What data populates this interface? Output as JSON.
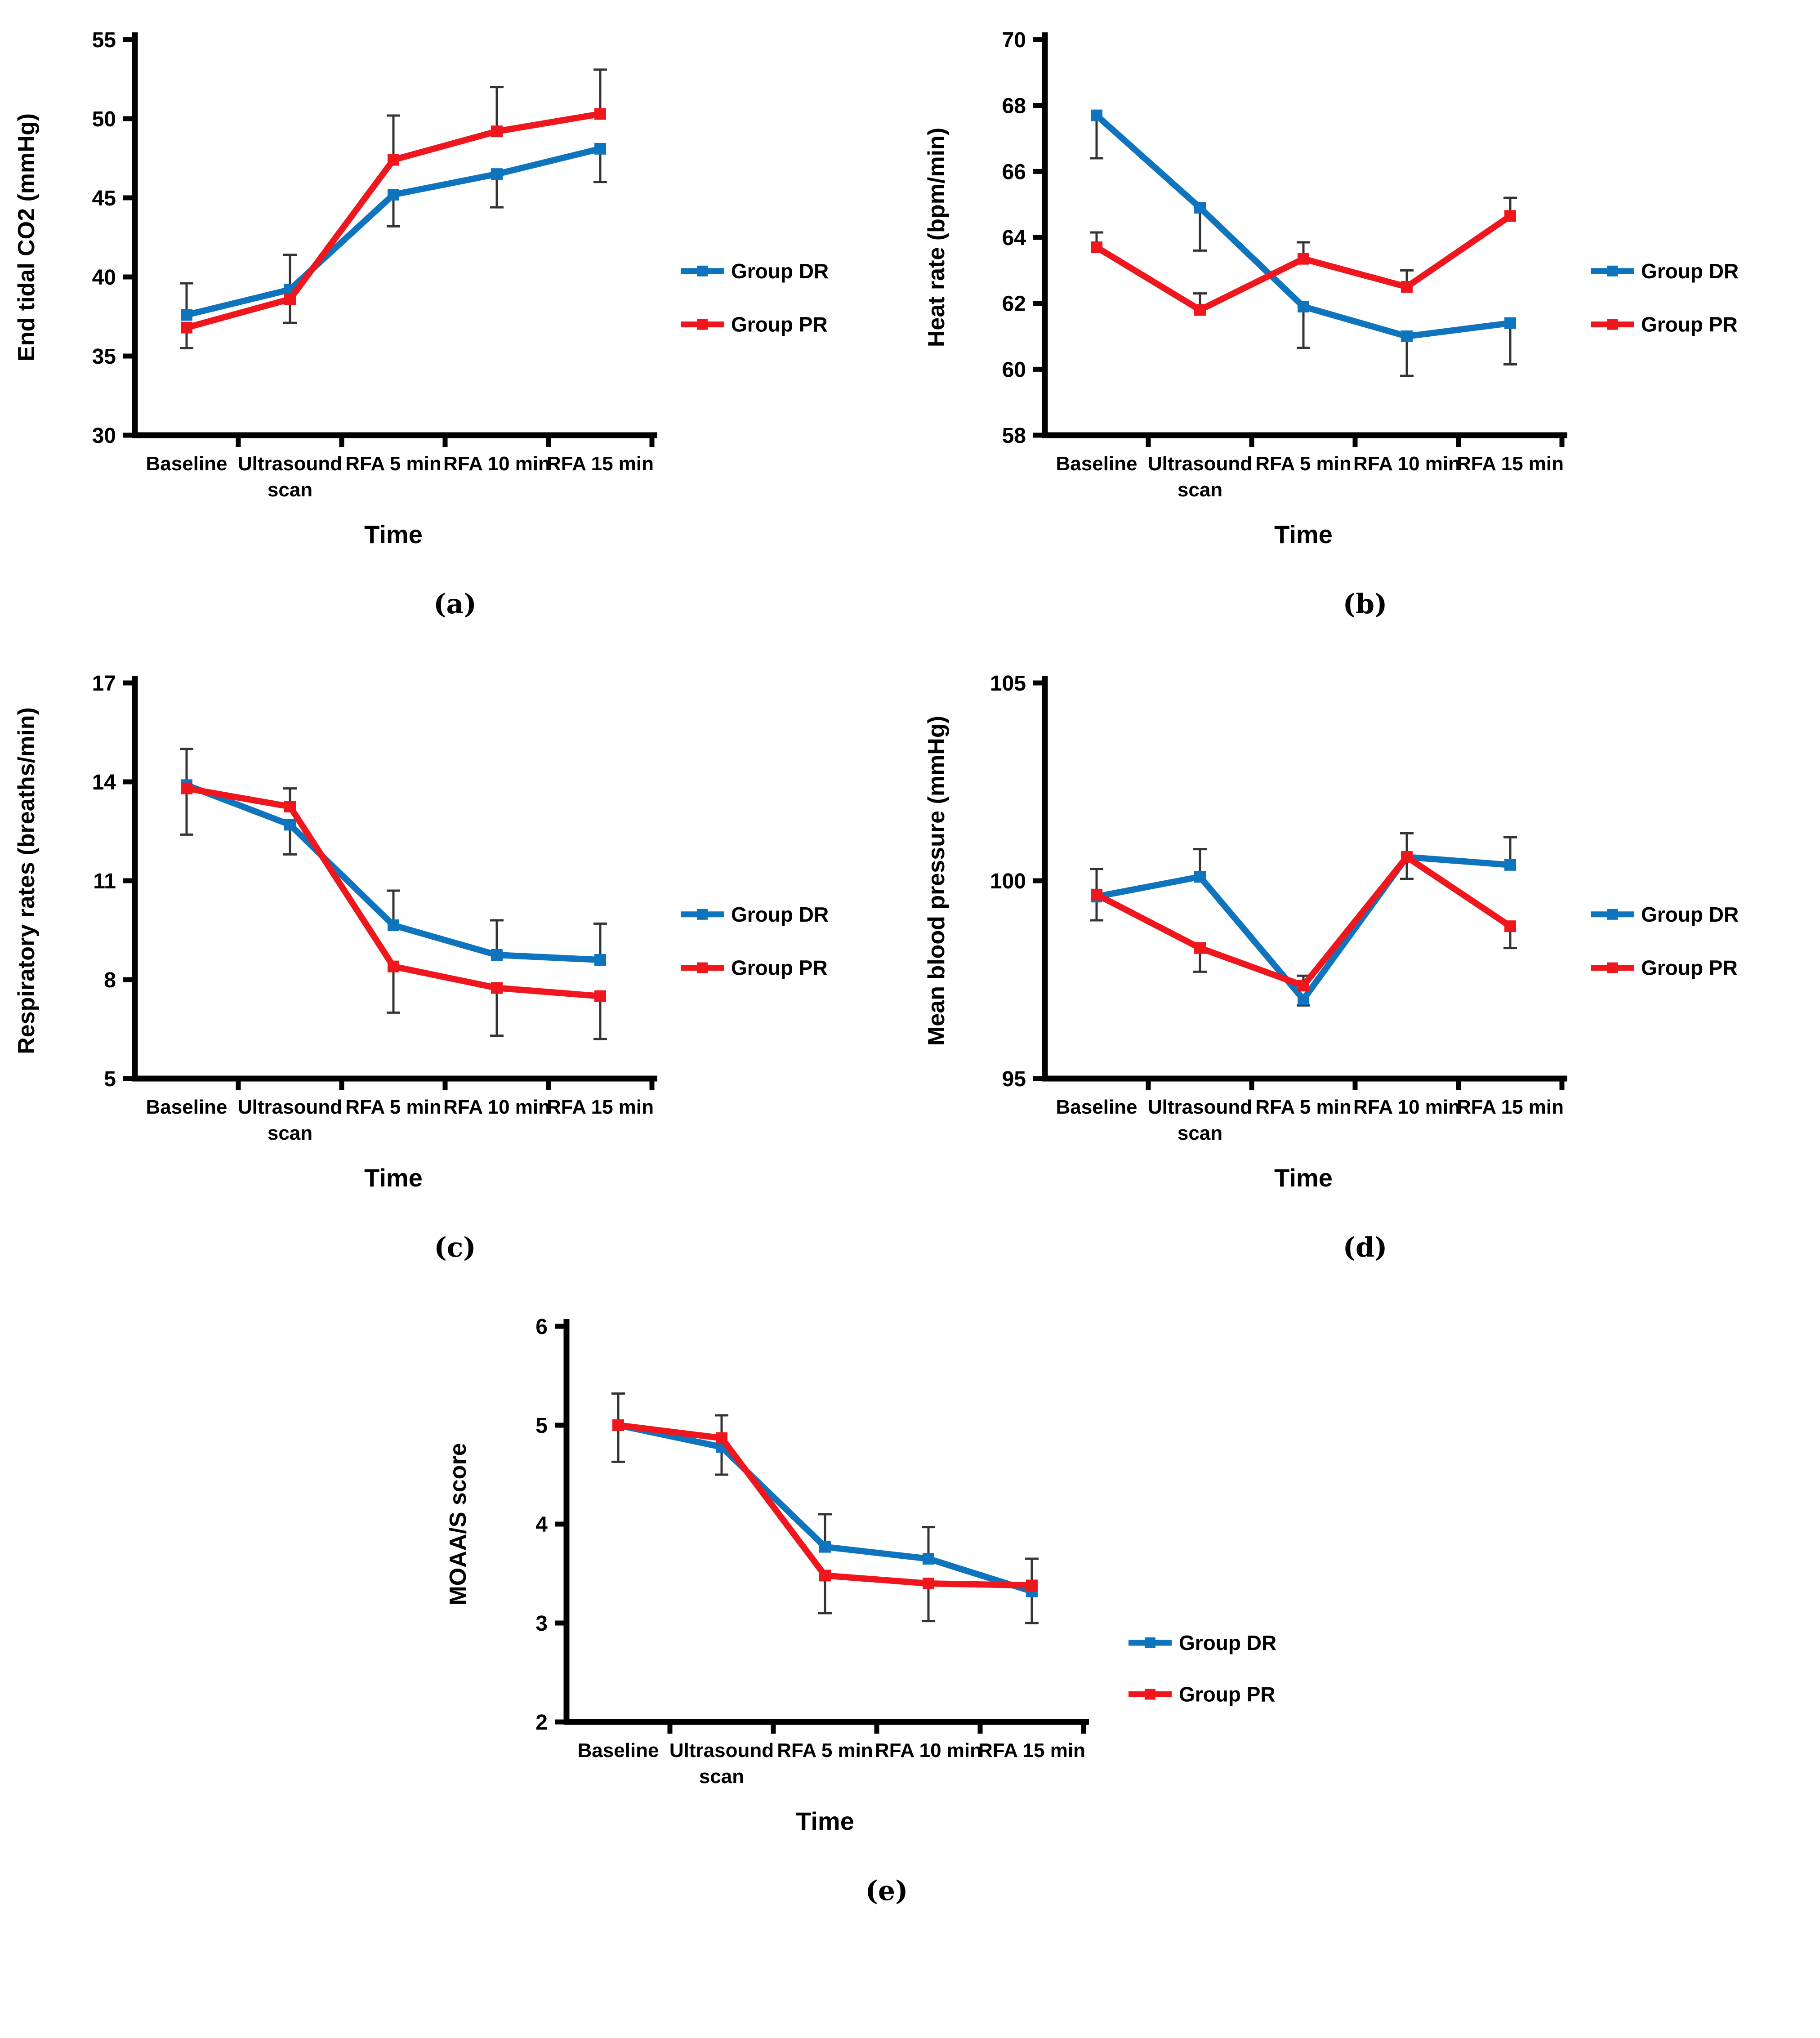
{
  "colors": {
    "dr": "#0f74be",
    "pr": "#ef161d",
    "error": "#333333",
    "axis": "#000000"
  },
  "legend": {
    "dr_label": "Group DR",
    "pr_label": "Group PR"
  },
  "chart_data": [
    {
      "type": "line",
      "panel_label": "(a)",
      "ylabel": "End tidal CO2 (mmHg)",
      "xlabel": "Time",
      "ylim": [
        30,
        55
      ],
      "yticks": [
        30,
        35,
        40,
        45,
        50,
        55
      ],
      "categories": [
        "Baseline",
        "Ultrasound scan",
        "RFA 5 min",
        "RFA 10 min",
        "RFA 15 min"
      ],
      "category_lines": [
        [
          "Baseline"
        ],
        [
          "Ultrasound",
          "scan"
        ],
        [
          "RFA 5 min"
        ],
        [
          "RFA 10 min"
        ],
        [
          "RFA 15 min"
        ]
      ],
      "legend_position": "right",
      "grid": false,
      "series": [
        {
          "name": "Group DR",
          "color_key": "dr",
          "values": [
            37.6,
            39.2,
            45.2,
            46.5,
            48.1
          ],
          "err_up": [
            2.0,
            2.2,
            null,
            null,
            null
          ],
          "err_down": [
            null,
            null,
            2.0,
            2.1,
            2.1
          ]
        },
        {
          "name": "Group PR",
          "color_key": "pr",
          "values": [
            36.8,
            38.6,
            47.4,
            49.2,
            50.3
          ],
          "err_up": [
            null,
            null,
            2.8,
            2.8,
            2.8
          ],
          "err_down": [
            1.3,
            1.5,
            null,
            null,
            null
          ]
        }
      ]
    },
    {
      "type": "line",
      "panel_label": "(b)",
      "ylabel": "Heat rate (bpm/min)",
      "xlabel": "Time",
      "ylim": [
        58,
        70
      ],
      "yticks": [
        58,
        60,
        62,
        64,
        66,
        68,
        70
      ],
      "categories": [
        "Baseline",
        "Ultrasound scan",
        "RFA 5 min",
        "RFA 10 min",
        "RFA 15 min"
      ],
      "category_lines": [
        [
          "Baseline"
        ],
        [
          "Ultrasound",
          "scan"
        ],
        [
          "RFA 5 min"
        ],
        [
          "RFA 10 min"
        ],
        [
          "RFA 15 min"
        ]
      ],
      "legend_position": "right",
      "grid": false,
      "series": [
        {
          "name": "Group DR",
          "color_key": "dr",
          "values": [
            67.7,
            64.9,
            61.9,
            61.0,
            61.4
          ],
          "err_up": [
            null,
            null,
            null,
            null,
            null
          ],
          "err_down": [
            1.3,
            1.3,
            1.25,
            1.2,
            1.25
          ]
        },
        {
          "name": "Group PR",
          "color_key": "pr",
          "values": [
            63.7,
            61.8,
            63.35,
            62.5,
            64.65
          ],
          "err_up": [
            0.45,
            0.5,
            0.5,
            0.5,
            0.55
          ],
          "err_down": [
            null,
            null,
            null,
            null,
            null
          ]
        }
      ]
    },
    {
      "type": "line",
      "panel_label": "(c)",
      "ylabel": "Respiratory rates (breaths/min)",
      "xlabel": "Time",
      "ylim": [
        5,
        17
      ],
      "yticks": [
        5,
        8,
        11,
        14,
        17
      ],
      "categories": [
        "Baseline",
        "Ultrasound scan",
        "RFA 5 min",
        "RFA 10 min",
        "RFA 15 min"
      ],
      "category_lines": [
        [
          "Baseline"
        ],
        [
          "Ultrasound",
          "scan"
        ],
        [
          "RFA 5 min"
        ],
        [
          "RFA 10 min"
        ],
        [
          "RFA 15 min"
        ]
      ],
      "legend_position": "right",
      "grid": false,
      "series": [
        {
          "name": "Group DR",
          "color_key": "dr",
          "values": [
            13.9,
            12.7,
            9.65,
            8.75,
            8.6
          ],
          "err_up": [
            1.1,
            null,
            1.05,
            1.05,
            1.1
          ],
          "err_down": [
            null,
            0.9,
            null,
            null,
            null
          ]
        },
        {
          "name": "Group PR",
          "color_key": "pr",
          "values": [
            13.8,
            13.25,
            8.4,
            7.75,
            7.5
          ],
          "err_up": [
            null,
            0.55,
            null,
            null,
            null
          ],
          "err_down": [
            1.4,
            null,
            1.4,
            1.45,
            1.3
          ]
        }
      ]
    },
    {
      "type": "line",
      "panel_label": "(d)",
      "ylabel": "Mean blood pressure (mmHg)",
      "xlabel": "Time",
      "ylim": [
        95,
        105
      ],
      "yticks": [
        95,
        100,
        105
      ],
      "categories": [
        "Baseline",
        "Ultrasound scan",
        "RFA 5 min",
        "RFA 10 min",
        "RFA 15 min"
      ],
      "category_lines": [
        [
          "Baseline"
        ],
        [
          "Ultrasound",
          "scan"
        ],
        [
          "RFA 5 min"
        ],
        [
          "RFA 10 min"
        ],
        [
          "RFA 15 min"
        ]
      ],
      "legend_position": "right",
      "grid": false,
      "series": [
        {
          "name": "Group DR",
          "color_key": "dr",
          "values": [
            99.6,
            100.1,
            97.0,
            100.6,
            100.4
          ],
          "err_up": [
            0.7,
            0.7,
            null,
            0.6,
            0.7
          ],
          "err_down": [
            null,
            null,
            0.15,
            null,
            null
          ]
        },
        {
          "name": "Group PR",
          "color_key": "pr",
          "values": [
            99.65,
            98.3,
            97.35,
            100.6,
            98.85
          ],
          "err_up": [
            null,
            null,
            0.25,
            null,
            null
          ],
          "err_down": [
            0.65,
            0.6,
            null,
            0.55,
            0.55
          ]
        }
      ]
    },
    {
      "type": "line",
      "panel_label": "(e)",
      "ylabel": "MOAA/S score",
      "xlabel": "Time",
      "ylim": [
        2,
        6
      ],
      "yticks": [
        2,
        3,
        4,
        5,
        6
      ],
      "categories": [
        "Baseline",
        "Ultrasound scan",
        "RFA 5 min",
        "RFA 10 min",
        "RFA 15 min"
      ],
      "category_lines": [
        [
          "Baseline"
        ],
        [
          "Ultrasound",
          "scan"
        ],
        [
          "RFA 5 min"
        ],
        [
          "RFA 10 min"
        ],
        [
          "RFA 15 min"
        ]
      ],
      "legend_position": "right",
      "grid": false,
      "series": [
        {
          "name": "Group DR",
          "color_key": "dr",
          "values": [
            5.0,
            4.78,
            3.77,
            3.65,
            3.32
          ],
          "err_up": [
            0.32,
            null,
            0.33,
            0.32,
            null
          ],
          "err_down": [
            null,
            0.28,
            null,
            null,
            0.32
          ]
        },
        {
          "name": "Group PR",
          "color_key": "pr",
          "values": [
            5.0,
            4.87,
            3.48,
            3.4,
            3.38
          ],
          "err_up": [
            null,
            0.23,
            null,
            null,
            0.27
          ],
          "err_down": [
            0.37,
            null,
            0.38,
            0.38,
            null
          ]
        }
      ]
    }
  ]
}
